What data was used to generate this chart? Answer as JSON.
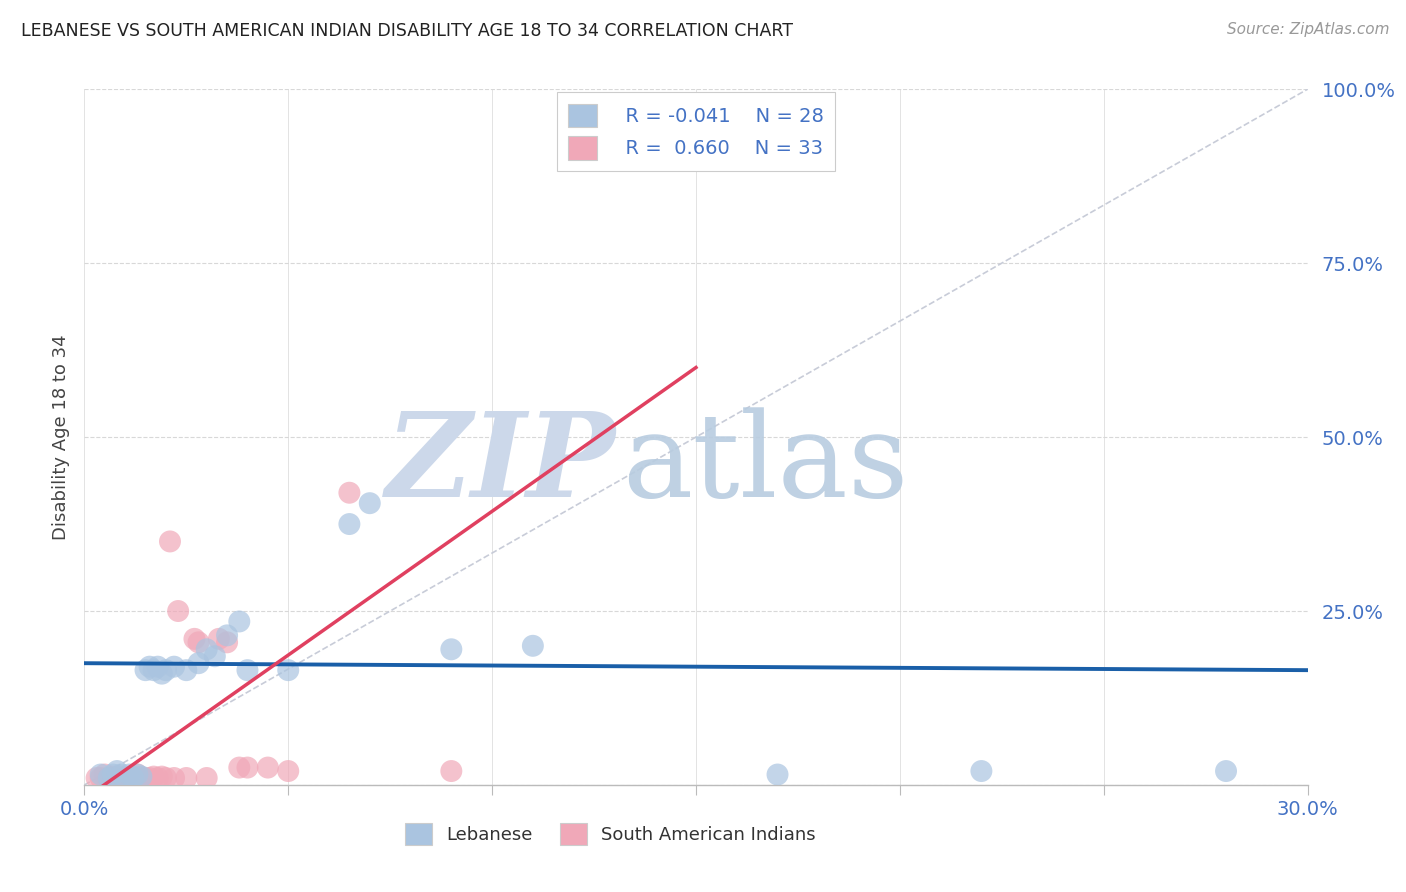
{
  "title": "LEBANESE VS SOUTH AMERICAN INDIAN DISABILITY AGE 18 TO 34 CORRELATION CHART",
  "source": "Source: ZipAtlas.com",
  "ylabel": "Disability Age 18 to 34",
  "x_min": 0.0,
  "x_max": 0.3,
  "y_min": 0.0,
  "y_max": 1.0,
  "x_ticks": [
    0.0,
    0.05,
    0.1,
    0.15,
    0.2,
    0.25,
    0.3
  ],
  "y_ticks": [
    0.0,
    0.25,
    0.5,
    0.75,
    1.0
  ],
  "y_tick_labels": [
    "",
    "25.0%",
    "50.0%",
    "75.0%",
    "100.0%"
  ],
  "x_tick_labels": [
    "0.0%",
    "",
    "",
    "",
    "",
    "",
    "30.0%"
  ],
  "blue_color": "#aac4e0",
  "pink_color": "#f0a8b8",
  "blue_line_color": "#1a5fa8",
  "pink_line_color": "#e04060",
  "axis_label_color": "#4472c4",
  "grid_color": "#d8d8d8",
  "watermark_color": "#ccd8ea",
  "ref_line_color": "#c8ccd8",
  "blue_line_y0": 0.175,
  "blue_line_y1": 0.165,
  "pink_line_x0": 0.0,
  "pink_line_y0": -0.02,
  "pink_line_x1": 0.15,
  "pink_line_y1": 0.6,
  "blue_points_x": [
    0.004,
    0.006,
    0.007,
    0.008,
    0.009,
    0.01,
    0.011,
    0.012,
    0.013,
    0.014,
    0.015,
    0.016,
    0.017,
    0.018,
    0.019,
    0.02,
    0.022,
    0.025,
    0.028,
    0.03,
    0.032,
    0.035,
    0.038,
    0.04,
    0.05,
    0.065,
    0.07,
    0.09,
    0.11,
    0.17,
    0.22,
    0.28
  ],
  "blue_points_y": [
    0.015,
    0.01,
    0.015,
    0.02,
    0.015,
    0.01,
    0.015,
    0.01,
    0.015,
    0.012,
    0.165,
    0.17,
    0.165,
    0.17,
    0.16,
    0.165,
    0.17,
    0.165,
    0.175,
    0.195,
    0.185,
    0.215,
    0.235,
    0.165,
    0.165,
    0.375,
    0.405,
    0.195,
    0.2,
    0.015,
    0.02,
    0.02
  ],
  "pink_points_x": [
    0.003,
    0.004,
    0.005,
    0.006,
    0.007,
    0.008,
    0.009,
    0.01,
    0.011,
    0.012,
    0.013,
    0.014,
    0.015,
    0.016,
    0.017,
    0.018,
    0.019,
    0.02,
    0.021,
    0.022,
    0.023,
    0.025,
    0.027,
    0.028,
    0.03,
    0.033,
    0.035,
    0.038,
    0.04,
    0.045,
    0.05,
    0.065,
    0.09
  ],
  "pink_points_y": [
    0.01,
    0.01,
    0.015,
    0.01,
    0.012,
    0.01,
    0.012,
    0.01,
    0.012,
    0.01,
    0.015,
    0.01,
    0.01,
    0.01,
    0.012,
    0.01,
    0.012,
    0.01,
    0.35,
    0.01,
    0.25,
    0.01,
    0.21,
    0.205,
    0.01,
    0.21,
    0.205,
    0.025,
    0.025,
    0.025,
    0.02,
    0.42,
    0.02
  ]
}
